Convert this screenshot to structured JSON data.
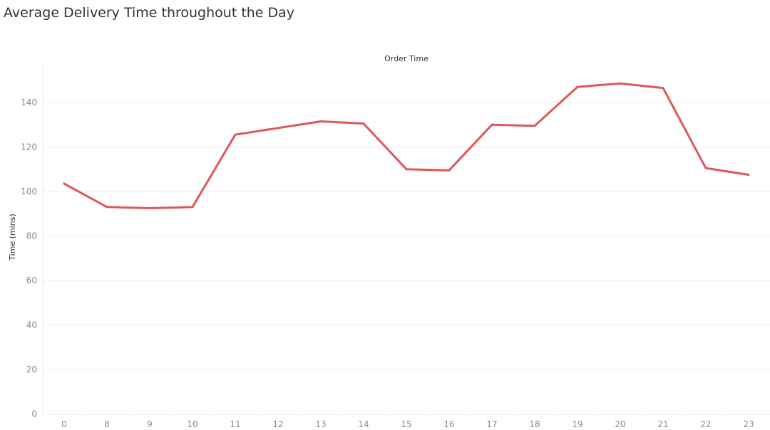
{
  "chart_data": {
    "type": "line",
    "title": "Average Delivery Time throughout the Day",
    "header_label": "Order Time",
    "xlabel": "",
    "ylabel": "Time (mins)",
    "categories": [
      "0",
      "8",
      "9",
      "10",
      "11",
      "12",
      "13",
      "14",
      "15",
      "16",
      "17",
      "18",
      "19",
      "20",
      "21",
      "22",
      "23"
    ],
    "values": [
      103.5,
      93,
      92.5,
      93,
      125.5,
      128.5,
      131.5,
      130.5,
      110,
      109.5,
      130,
      129.5,
      147,
      148.5,
      146.5,
      110.5,
      107.5
    ],
    "ylim": [
      0,
      155
    ],
    "yticks": [
      0,
      20,
      40,
      60,
      80,
      100,
      120,
      140
    ],
    "grid": true,
    "legend": "none",
    "line_color": "#e05759"
  }
}
